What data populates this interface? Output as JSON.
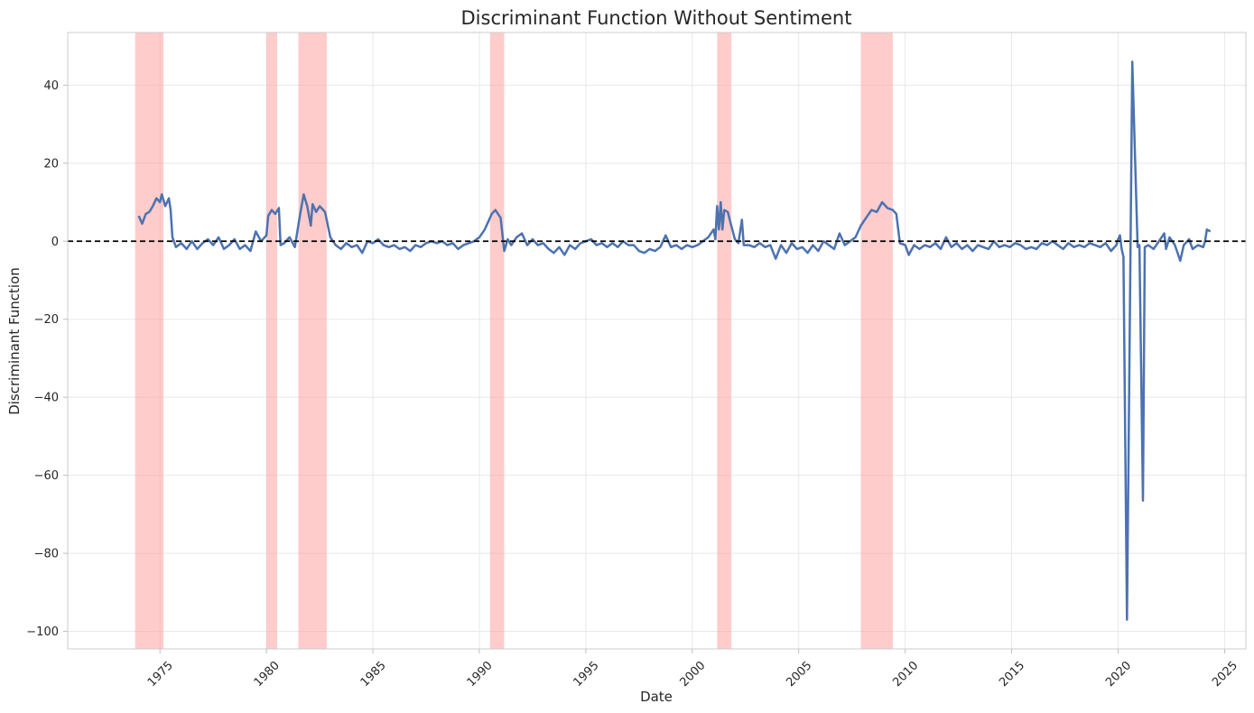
{
  "chart_data": {
    "type": "line",
    "title": "Discriminant Function Without Sentiment",
    "xlabel": "Date",
    "ylabel": "Discriminant Function",
    "xlim": [
      "1970-09-01",
      "2026-01-01"
    ],
    "ylim": [
      -104.5,
      53.5
    ],
    "x_ticks": [
      "1975",
      "1980",
      "1985",
      "1990",
      "1995",
      "2000",
      "2005",
      "2010",
      "2015",
      "2020",
      "2025"
    ],
    "y_ticks": [
      40,
      20,
      0,
      -20,
      -40,
      -60,
      -80,
      -100
    ],
    "y_tick_labels": [
      "40",
      "20",
      "0",
      "−20",
      "−40",
      "−60",
      "−80",
      "−100"
    ],
    "grid": true,
    "reference_line": {
      "y": 0,
      "style": "dashed",
      "color": "#000000"
    },
    "recession_periods": [
      [
        "1973-11-01",
        "1975-03-01"
      ],
      [
        "1980-01-01",
        "1980-07-01"
      ],
      [
        "1981-07-01",
        "1982-11-01"
      ],
      [
        "1990-07-01",
        "1991-03-01"
      ],
      [
        "2001-03-01",
        "2001-11-01"
      ],
      [
        "2007-12-01",
        "2009-06-01"
      ]
    ],
    "recession_color": "#ff9a9a",
    "series": [
      {
        "color": "#4c72b0",
        "points": [
          [
            "1974-01-01",
            6.5
          ],
          [
            "1974-03-01",
            4.5
          ],
          [
            "1974-05-01",
            7
          ],
          [
            "1974-07-01",
            7.5
          ],
          [
            "1974-09-01",
            9
          ],
          [
            "1974-11-01",
            11
          ],
          [
            "1975-01-01",
            10
          ],
          [
            "1975-02-01",
            12
          ],
          [
            "1975-04-01",
            9
          ],
          [
            "1975-06-01",
            11
          ],
          [
            "1975-07-01",
            8
          ],
          [
            "1975-08-01",
            1
          ],
          [
            "1975-10-01",
            -1.5
          ],
          [
            "1976-01-01",
            -0.5
          ],
          [
            "1976-04-01",
            -2
          ],
          [
            "1976-07-01",
            0
          ],
          [
            "1976-10-01",
            -2
          ],
          [
            "1977-01-01",
            -0.5
          ],
          [
            "1977-04-01",
            0.5
          ],
          [
            "1977-07-01",
            -1
          ],
          [
            "1977-10-01",
            1
          ],
          [
            "1978-01-01",
            -2
          ],
          [
            "1978-04-01",
            -1
          ],
          [
            "1978-07-01",
            0.5
          ],
          [
            "1978-10-01",
            -2
          ],
          [
            "1979-01-01",
            -1
          ],
          [
            "1979-04-01",
            -2.5
          ],
          [
            "1979-07-01",
            2.5
          ],
          [
            "1979-10-01",
            0
          ],
          [
            "1980-01-01",
            1.5
          ],
          [
            "1980-02-01",
            6.5
          ],
          [
            "1980-04-01",
            8
          ],
          [
            "1980-06-01",
            7
          ],
          [
            "1980-08-01",
            8.5
          ],
          [
            "1980-09-01",
            -1
          ],
          [
            "1980-11-01",
            -0.5
          ],
          [
            "1981-02-01",
            1
          ],
          [
            "1981-05-01",
            -1.5
          ],
          [
            "1981-08-01",
            7
          ],
          [
            "1981-10-01",
            12
          ],
          [
            "1981-12-01",
            9
          ],
          [
            "1982-02-01",
            4
          ],
          [
            "1982-03-01",
            9.5
          ],
          [
            "1982-05-01",
            7.5
          ],
          [
            "1982-07-01",
            9
          ],
          [
            "1982-10-01",
            7.5
          ],
          [
            "1983-01-01",
            1
          ],
          [
            "1983-04-01",
            -1
          ],
          [
            "1983-07-01",
            -2
          ],
          [
            "1983-10-01",
            -0.5
          ],
          [
            "1984-01-01",
            -1.5
          ],
          [
            "1984-04-01",
            -1
          ],
          [
            "1984-07-01",
            -3
          ],
          [
            "1984-10-01",
            0
          ],
          [
            "1985-01-01",
            -0.5
          ],
          [
            "1985-04-01",
            0.5
          ],
          [
            "1985-07-01",
            -1
          ],
          [
            "1985-10-01",
            -1.5
          ],
          [
            "1986-01-01",
            -1
          ],
          [
            "1986-04-01",
            -2
          ],
          [
            "1986-07-01",
            -1.5
          ],
          [
            "1986-10-01",
            -2.5
          ],
          [
            "1987-01-01",
            -1
          ],
          [
            "1987-04-01",
            -1.5
          ],
          [
            "1987-07-01",
            -0.5
          ],
          [
            "1987-10-01",
            0
          ],
          [
            "1988-01-01",
            -0.5
          ],
          [
            "1988-04-01",
            0
          ],
          [
            "1988-07-01",
            -1
          ],
          [
            "1988-10-01",
            -0.5
          ],
          [
            "1989-01-01",
            -2
          ],
          [
            "1989-04-01",
            -1
          ],
          [
            "1989-07-01",
            -0.5
          ],
          [
            "1989-10-01",
            0
          ],
          [
            "1990-01-01",
            1
          ],
          [
            "1990-04-01",
            3
          ],
          [
            "1990-06-01",
            5
          ],
          [
            "1990-08-01",
            7
          ],
          [
            "1990-10-01",
            8
          ],
          [
            "1991-01-01",
            6
          ],
          [
            "1991-03-01",
            -2.5
          ],
          [
            "1991-05-01",
            0.5
          ],
          [
            "1991-07-01",
            -1
          ],
          [
            "1991-10-01",
            1
          ],
          [
            "1992-01-01",
            2
          ],
          [
            "1992-04-01",
            -1
          ],
          [
            "1992-07-01",
            0.5
          ],
          [
            "1992-10-01",
            -1
          ],
          [
            "1993-01-01",
            -0.5
          ],
          [
            "1993-04-01",
            -2
          ],
          [
            "1993-07-01",
            -3
          ],
          [
            "1993-10-01",
            -1.5
          ],
          [
            "1994-01-01",
            -3.5
          ],
          [
            "1994-04-01",
            -1
          ],
          [
            "1994-07-01",
            -2
          ],
          [
            "1994-10-01",
            -0.5
          ],
          [
            "1995-01-01",
            0
          ],
          [
            "1995-04-01",
            0.5
          ],
          [
            "1995-07-01",
            -1
          ],
          [
            "1995-10-01",
            -0.5
          ],
          [
            "1996-01-01",
            -1.5
          ],
          [
            "1996-04-01",
            -0.5
          ],
          [
            "1996-07-01",
            -1.5
          ],
          [
            "1996-10-01",
            0
          ],
          [
            "1997-01-01",
            -1
          ],
          [
            "1997-04-01",
            -1
          ],
          [
            "1997-07-01",
            -2.5
          ],
          [
            "1997-10-01",
            -3
          ],
          [
            "1998-01-01",
            -2
          ],
          [
            "1998-04-01",
            -2.5
          ],
          [
            "1998-07-01",
            -1.5
          ],
          [
            "1998-10-01",
            1.5
          ],
          [
            "1999-01-01",
            -1.5
          ],
          [
            "1999-04-01",
            -1
          ],
          [
            "1999-07-01",
            -2
          ],
          [
            "1999-10-01",
            -1
          ],
          [
            "2000-01-01",
            -1.5
          ],
          [
            "2000-04-01",
            -1
          ],
          [
            "2000-07-01",
            0
          ],
          [
            "2000-10-01",
            1
          ],
          [
            "2001-01-01",
            3
          ],
          [
            "2001-02-01",
            0.5
          ],
          [
            "2001-03-01",
            9
          ],
          [
            "2001-04-01",
            3
          ],
          [
            "2001-05-01",
            10
          ],
          [
            "2001-06-01",
            3
          ],
          [
            "2001-07-01",
            8
          ],
          [
            "2001-09-01",
            7.5
          ],
          [
            "2001-11-01",
            4
          ],
          [
            "2002-01-01",
            0.5
          ],
          [
            "2002-03-01",
            -0.5
          ],
          [
            "2002-05-01",
            5.5
          ],
          [
            "2002-06-01",
            -1
          ],
          [
            "2002-09-01",
            -1
          ],
          [
            "2002-12-01",
            -1.5
          ],
          [
            "2003-03-01",
            -0.5
          ],
          [
            "2003-06-01",
            -1.5
          ],
          [
            "2003-09-01",
            -1
          ],
          [
            "2003-12-01",
            -4.5
          ],
          [
            "2004-03-01",
            -1
          ],
          [
            "2004-06-01",
            -3
          ],
          [
            "2004-09-01",
            -0.5
          ],
          [
            "2004-12-01",
            -2
          ],
          [
            "2005-03-01",
            -1.5
          ],
          [
            "2005-06-01",
            -3
          ],
          [
            "2005-09-01",
            -1
          ],
          [
            "2005-12-01",
            -2.5
          ],
          [
            "2006-03-01",
            0
          ],
          [
            "2006-06-01",
            -1
          ],
          [
            "2006-09-01",
            -2
          ],
          [
            "2006-12-01",
            2
          ],
          [
            "2007-03-01",
            -1
          ],
          [
            "2007-06-01",
            0
          ],
          [
            "2007-09-01",
            1
          ],
          [
            "2007-12-01",
            4
          ],
          [
            "2008-03-01",
            6
          ],
          [
            "2008-06-01",
            8
          ],
          [
            "2008-09-01",
            7.5
          ],
          [
            "2008-12-01",
            10
          ],
          [
            "2009-03-01",
            8.5
          ],
          [
            "2009-06-01",
            8
          ],
          [
            "2009-08-01",
            7
          ],
          [
            "2009-10-01",
            -0.5
          ],
          [
            "2010-01-01",
            -1
          ],
          [
            "2010-03-01",
            -3.5
          ],
          [
            "2010-06-01",
            -1
          ],
          [
            "2010-09-01",
            -2
          ],
          [
            "2010-12-01",
            -1
          ],
          [
            "2011-03-01",
            -1.5
          ],
          [
            "2011-06-01",
            -0.5
          ],
          [
            "2011-09-01",
            -2
          ],
          [
            "2011-12-01",
            1
          ],
          [
            "2012-03-01",
            -1.5
          ],
          [
            "2012-06-01",
            -0.5
          ],
          [
            "2012-09-01",
            -2
          ],
          [
            "2012-12-01",
            -1
          ],
          [
            "2013-03-01",
            -2.5
          ],
          [
            "2013-06-01",
            -1
          ],
          [
            "2013-09-01",
            -1.5
          ],
          [
            "2013-12-01",
            -2
          ],
          [
            "2014-03-01",
            0
          ],
          [
            "2014-06-01",
            -1.5
          ],
          [
            "2014-09-01",
            -1
          ],
          [
            "2014-12-01",
            -1.5
          ],
          [
            "2015-03-01",
            -0.5
          ],
          [
            "2015-06-01",
            -1
          ],
          [
            "2015-09-01",
            -2
          ],
          [
            "2015-12-01",
            -1.5
          ],
          [
            "2016-03-01",
            -2
          ],
          [
            "2016-06-01",
            -0.5
          ],
          [
            "2016-09-01",
            -1
          ],
          [
            "2016-12-01",
            0
          ],
          [
            "2017-03-01",
            -1
          ],
          [
            "2017-06-01",
            -2
          ],
          [
            "2017-09-01",
            -0.5
          ],
          [
            "2017-12-01",
            -1.5
          ],
          [
            "2018-03-01",
            -1
          ],
          [
            "2018-06-01",
            -1.5
          ],
          [
            "2018-09-01",
            -0.5
          ],
          [
            "2018-12-01",
            -1
          ],
          [
            "2019-03-01",
            -1.5
          ],
          [
            "2019-06-01",
            -0.5
          ],
          [
            "2019-09-01",
            -2.5
          ],
          [
            "2019-12-01",
            -1
          ],
          [
            "2020-01-01",
            0.5
          ],
          [
            "2020-02-01",
            1.5
          ],
          [
            "2020-03-01",
            -2
          ],
          [
            "2020-04-01",
            -4
          ],
          [
            "2020-06-01",
            -97
          ],
          [
            "2020-09-01",
            46
          ],
          [
            "2020-12-01",
            -1.5
          ],
          [
            "2021-01-01",
            -1
          ],
          [
            "2021-03-01",
            -66.5
          ],
          [
            "2021-04-01",
            -1.5
          ],
          [
            "2021-06-01",
            -1
          ],
          [
            "2021-09-01",
            -2
          ],
          [
            "2021-12-01",
            0
          ],
          [
            "2022-03-01",
            2
          ],
          [
            "2022-04-01",
            -2
          ],
          [
            "2022-06-01",
            1
          ],
          [
            "2022-09-01",
            -1
          ],
          [
            "2022-12-01",
            -5
          ],
          [
            "2023-02-01",
            -1
          ],
          [
            "2023-05-01",
            0.5
          ],
          [
            "2023-07-01",
            -2
          ],
          [
            "2023-10-01",
            -1
          ],
          [
            "2024-01-01",
            -1.5
          ],
          [
            "2024-02-01",
            0
          ],
          [
            "2024-03-01",
            3
          ],
          [
            "2024-05-01",
            2.5
          ]
        ]
      }
    ]
  }
}
